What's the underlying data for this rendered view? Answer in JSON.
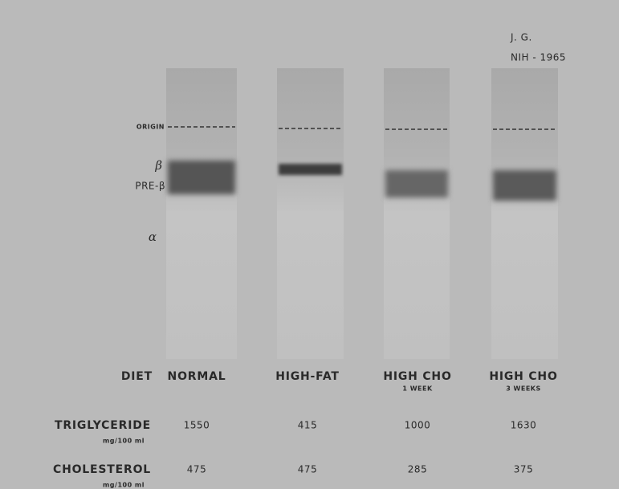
{
  "header": {
    "author": "J. G.",
    "institution": "NIH - 1965"
  },
  "markers": {
    "origin": "ORIGIN",
    "beta": "β",
    "pre_beta": "PRE-β",
    "alpha": "α"
  },
  "table": {
    "rows": [
      {
        "label": "DIET",
        "cells": [
          "NORMAL",
          "HIGH-FAT",
          "HIGH CHO",
          "HIGH CHO"
        ],
        "notes": [
          null,
          null,
          "1 WEEK",
          "3 WEEKS"
        ]
      },
      {
        "label": "TRIGLYCERIDE",
        "unit": "mg/100 ml",
        "cells": [
          1550,
          415,
          1000,
          1630
        ]
      },
      {
        "label": "CHOLESTEROL",
        "unit": "mg/100 ml",
        "cells": [
          475,
          475,
          285,
          375
        ]
      }
    ]
  }
}
